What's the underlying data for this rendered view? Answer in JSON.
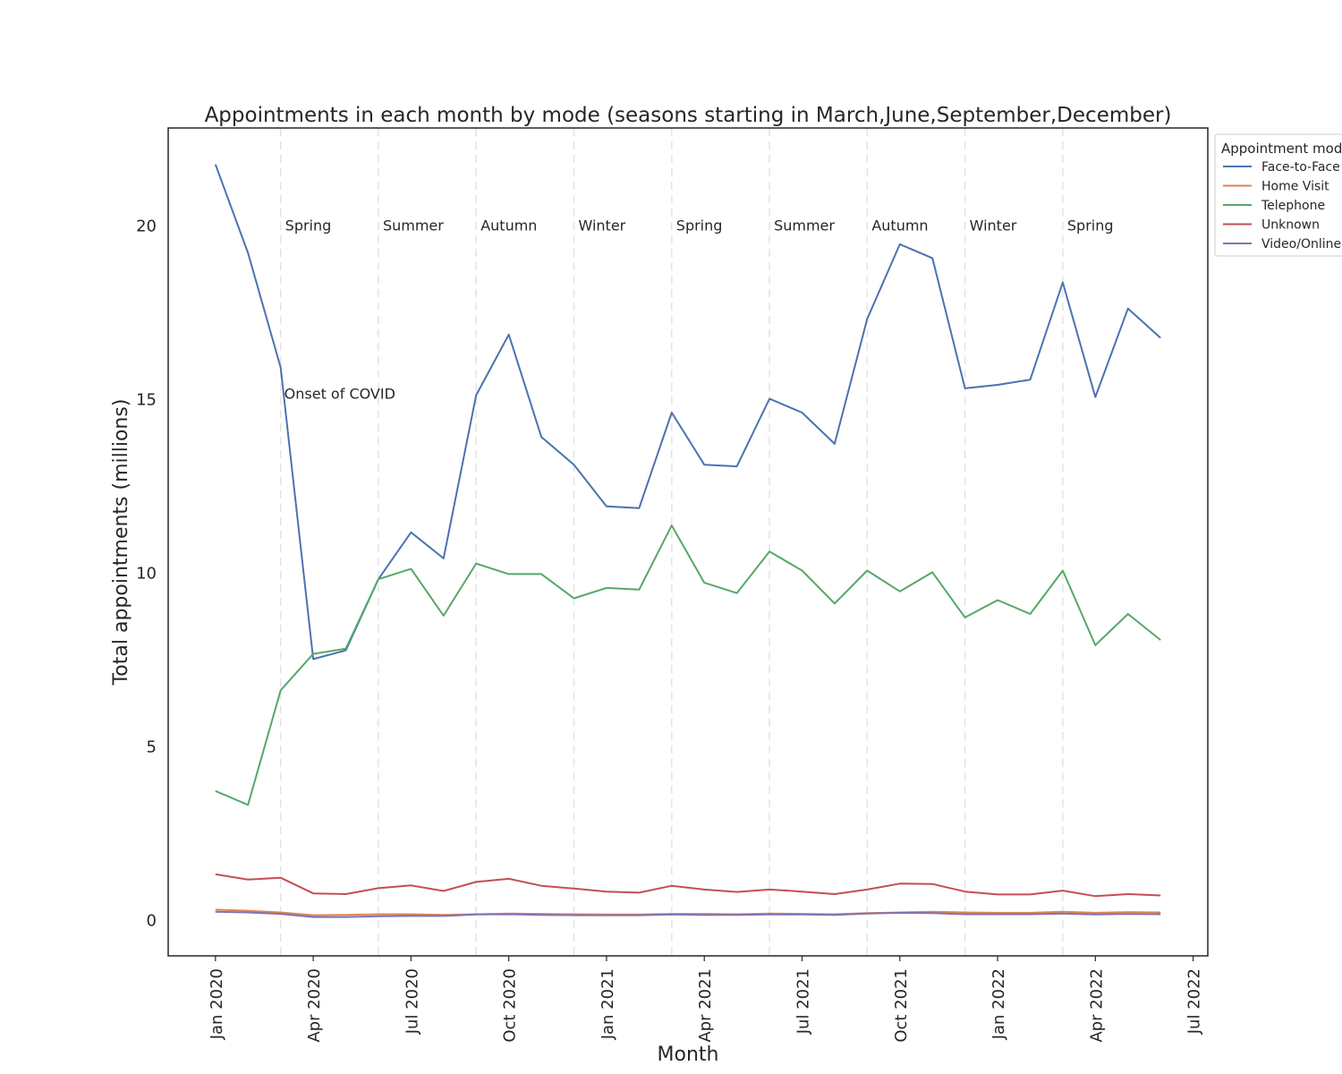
{
  "chart_data": {
    "type": "line",
    "title": "Appointments in each month by mode (seasons starting in March,June,September,December)",
    "xlabel": "Month",
    "ylabel": "Total appointments (millions)",
    "ylim": [
      -1.05,
      22.8
    ],
    "yticks": [
      0,
      5,
      10,
      15,
      20
    ],
    "ytick_labels": [
      "0",
      "5",
      "10",
      "15",
      "20"
    ],
    "xlim": [
      -1.45,
      30.45
    ],
    "xticks": [
      0,
      3,
      6,
      9,
      12,
      15,
      18,
      21,
      24,
      27,
      30
    ],
    "xtick_labels": [
      "Jan 2020",
      "Apr 2020",
      "Jul 2020",
      "Oct 2020",
      "Jan 2021",
      "Apr 2021",
      "Jul 2021",
      "Oct 2021",
      "Jan 2022",
      "Apr 2022",
      "Jul 2022"
    ],
    "x": [
      "Jan 2020",
      "Feb 2020",
      "Mar 2020",
      "Apr 2020",
      "May 2020",
      "Jun 2020",
      "Jul 2020",
      "Aug 2020",
      "Sep 2020",
      "Oct 2020",
      "Nov 2020",
      "Dec 2020",
      "Jan 2021",
      "Feb 2021",
      "Mar 2021",
      "Apr 2021",
      "May 2021",
      "Jun 2021",
      "Jul 2021",
      "Aug 2021",
      "Sep 2021",
      "Oct 2021",
      "Nov 2021",
      "Dec 2021",
      "Jan 2022",
      "Feb 2022",
      "Mar 2022",
      "Apr 2022",
      "May 2022",
      "Jun 2022"
    ],
    "series": [
      {
        "name": "Face-to-Face",
        "color": "#4c72b0",
        "values": [
          21.75,
          19.2,
          15.9,
          7.5,
          7.75,
          9.8,
          11.15,
          10.4,
          15.1,
          16.85,
          13.9,
          13.1,
          11.9,
          11.85,
          14.6,
          13.1,
          13.05,
          15.0,
          14.6,
          13.7,
          17.3,
          19.45,
          19.05,
          15.3,
          15.4,
          15.55,
          18.35,
          15.05,
          17.6,
          16.75
        ]
      },
      {
        "name": "Home Visit",
        "color": "#dd8452",
        "values": [
          0.28,
          0.25,
          0.2,
          0.12,
          0.13,
          0.15,
          0.15,
          0.13,
          0.15,
          0.17,
          0.16,
          0.15,
          0.14,
          0.14,
          0.16,
          0.16,
          0.15,
          0.17,
          0.16,
          0.15,
          0.18,
          0.2,
          0.22,
          0.2,
          0.19,
          0.19,
          0.22,
          0.19,
          0.21,
          0.2
        ]
      },
      {
        "name": "Telephone",
        "color": "#55a868",
        "values": [
          3.7,
          3.3,
          6.6,
          7.65,
          7.8,
          9.8,
          10.1,
          8.75,
          10.25,
          9.95,
          9.95,
          9.25,
          9.55,
          9.5,
          11.35,
          9.7,
          9.4,
          10.6,
          10.05,
          9.1,
          10.05,
          9.45,
          10.0,
          8.7,
          9.2,
          8.8,
          10.05,
          7.9,
          8.8,
          8.05
        ]
      },
      {
        "name": "Unknown",
        "color": "#c44e52",
        "values": [
          1.3,
          1.15,
          1.2,
          0.75,
          0.73,
          0.9,
          0.98,
          0.82,
          1.08,
          1.17,
          0.97,
          0.89,
          0.8,
          0.77,
          0.97,
          0.86,
          0.79,
          0.86,
          0.8,
          0.73,
          0.86,
          1.03,
          1.02,
          0.8,
          0.72,
          0.72,
          0.83,
          0.67,
          0.73,
          0.69
        ]
      },
      {
        "name": "Video/Online",
        "color": "#8172b3",
        "values": [
          0.22,
          0.2,
          0.16,
          0.07,
          0.07,
          0.09,
          0.1,
          0.1,
          0.14,
          0.15,
          0.13,
          0.12,
          0.12,
          0.12,
          0.14,
          0.13,
          0.13,
          0.14,
          0.14,
          0.13,
          0.17,
          0.19,
          0.18,
          0.15,
          0.15,
          0.15,
          0.17,
          0.14,
          0.16,
          0.15
        ]
      }
    ],
    "season_lines": [
      {
        "x": 2,
        "label": "Spring"
      },
      {
        "x": 5,
        "label": "Summer"
      },
      {
        "x": 8,
        "label": "Autumn"
      },
      {
        "x": 11,
        "label": "Winter"
      },
      {
        "x": 14,
        "label": "Spring"
      },
      {
        "x": 17,
        "label": "Summer"
      },
      {
        "x": 20,
        "label": "Autumn"
      },
      {
        "x": 23,
        "label": "Winter"
      },
      {
        "x": 26,
        "label": "Spring"
      }
    ],
    "season_label_y": 20,
    "annotations": [
      {
        "text": "Onset of COVID",
        "x": 2,
        "y": 15
      }
    ],
    "legend": {
      "title": "Appointment mode",
      "position": "top-right, outside plot"
    },
    "grid": false
  }
}
